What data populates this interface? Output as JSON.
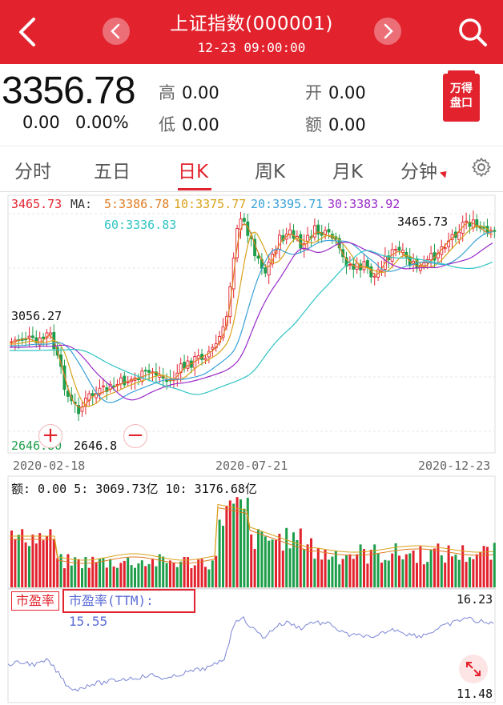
{
  "header": {
    "title": "上证指数(000001)",
    "datetime": "12-23 09:00:00"
  },
  "quote": {
    "price": "3356.78",
    "change": "0.00",
    "change_pct": "0.00%",
    "high_label": "高",
    "high": "0.00",
    "low_label": "低",
    "low": "0.00",
    "open_label": "开",
    "open": "0.00",
    "amount_label": "额",
    "amount": "0.00",
    "logo_line1": "万得",
    "logo_line2": "盘口"
  },
  "tabs": [
    "分时",
    "五日",
    "日K",
    "周K",
    "月K",
    "分钟"
  ],
  "active_tab": "日K",
  "kline": {
    "top_value": "3465.73",
    "ma_label": "MA:",
    "ma5": "5:3386.78",
    "ma10": "10:3375.77",
    "ma20": "20:3395.71",
    "ma30": "30:3383.92",
    "ma60": "60:3336.83",
    "high_mark": "3465.73",
    "mid_value": "3056.27",
    "low_value": "2646.80",
    "low_mark": "2646.8",
    "date_start": "2020-02-18",
    "date_mid": "2020-07-21",
    "date_end": "2020-12-23"
  },
  "volume": {
    "label": "额: 0.00 5: 3069.73亿 10: 3176.68亿"
  },
  "pe": {
    "tag": "市盈率",
    "ttm_label": "市盈率(TTM): 15.55",
    "max": "16.23",
    "min": "11.48"
  },
  "colors": {
    "red": "#e2232e",
    "green": "#1e9e4a",
    "ma5": "#e07c22",
    "ma10": "#d9a21b",
    "ma20": "#3aa2d8",
    "ma30": "#9a2bc8",
    "ma60": "#2fc4c4",
    "pe_line": "#7b86d6"
  }
}
